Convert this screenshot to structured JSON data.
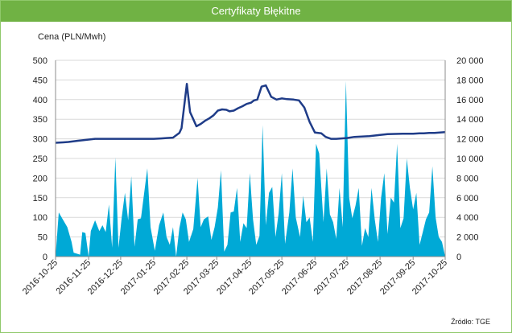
{
  "colors": {
    "header": "#70b244",
    "border": "#8fc96b",
    "price_line": "#1f3c88",
    "volume_area": "#00a9d6",
    "grid": "#d9d9d9",
    "text": "#222222"
  },
  "header": {
    "title": "Certyfikaty Błękitne"
  },
  "source_label": "Źródło: TGE",
  "chart_data": {
    "type": "line",
    "title": "Certyfikaty Błękitne",
    "ylabel": "Cena (PLN/Mwh)",
    "xlabel": "",
    "ylim": [
      0,
      500
    ],
    "y2lim": [
      0,
      20000
    ],
    "y_ticks": [
      "0",
      "50",
      "100",
      "150",
      "200",
      "250",
      "300",
      "350",
      "400",
      "450",
      "500"
    ],
    "y2_ticks": [
      "0",
      "2 000",
      "4 000",
      "6 000",
      "8 000",
      "10 000",
      "12 000",
      "14 000",
      "16 000",
      "18 000",
      "20 000"
    ],
    "x_ticks": [
      "2016-10-25",
      "2016-11-25",
      "2016-12-25",
      "2017-01-25",
      "2017-02-25",
      "2017-03-25",
      "2017-04-25",
      "2017-05-25",
      "2017-06-25",
      "2017-07-25",
      "2017-08-25",
      "2017-09-25",
      "2017-10-25"
    ],
    "x_range": [
      "2016-10-25",
      "2017-10-25"
    ],
    "grid": true,
    "legend": "none",
    "series": [
      {
        "type": "line",
        "axis": "left",
        "x": [
          "2016-10-25",
          "2016-11-01",
          "2016-11-06",
          "2016-11-15",
          "2016-12-01",
          "2016-12-20",
          "2017-01-05",
          "2017-01-10",
          "2017-01-15",
          "2017-01-25",
          "2017-02-01",
          "2017-02-06",
          "2017-02-12",
          "2017-02-18",
          "2017-02-20",
          "2017-02-25",
          "2017-02-28",
          "2017-03-03",
          "2017-03-06",
          "2017-03-10",
          "2017-03-14",
          "2017-03-18",
          "2017-03-22",
          "2017-03-26",
          "2017-03-30",
          "2017-04-03",
          "2017-04-06",
          "2017-04-10",
          "2017-04-14",
          "2017-04-18",
          "2017-04-22",
          "2017-04-26",
          "2017-04-29",
          "2017-05-02",
          "2017-05-06",
          "2017-05-10",
          "2017-05-15",
          "2017-05-20",
          "2017-05-25",
          "2017-05-30",
          "2017-06-05",
          "2017-06-10",
          "2017-06-15",
          "2017-06-20",
          "2017-06-25",
          "2017-07-01",
          "2017-07-05",
          "2017-07-10",
          "2017-07-15",
          "2017-07-25",
          "2017-08-01",
          "2017-08-15",
          "2017-08-25",
          "2017-09-01",
          "2017-09-15",
          "2017-09-25",
          "2017-10-01",
          "2017-10-05",
          "2017-10-10",
          "2017-10-15",
          "2017-10-25"
        ],
        "values": [
          290,
          291,
          292,
          295,
          300,
          300,
          300,
          300,
          300,
          300,
          301,
          302,
          303,
          315,
          327,
          440,
          368,
          350,
          332,
          338,
          346,
          352,
          360,
          372,
          375,
          374,
          370,
          372,
          378,
          383,
          389,
          392,
          398,
          400,
          433,
          436,
          407,
          400,
          403,
          401,
          400,
          398,
          380,
          343,
          316,
          314,
          305,
          300,
          300,
          302,
          305,
          307,
          310,
          312,
          313,
          313,
          314,
          314,
          315,
          315,
          317
        ]
      },
      {
        "type": "area",
        "axis": "right",
        "x": [
          "2016-10-25",
          "2016-10-28",
          "2016-11-05",
          "2016-11-09",
          "2016-11-11",
          "2016-11-17",
          "2016-11-19",
          "2016-11-22",
          "2016-11-25",
          "2016-11-27",
          "2016-12-01",
          "2016-12-05",
          "2016-12-08",
          "2016-12-11",
          "2016-12-14",
          "2016-12-17",
          "2016-12-20",
          "2016-12-23",
          "2016-12-26",
          "2016-12-29",
          "2017-01-01",
          "2017-01-04",
          "2017-01-07",
          "2017-01-10",
          "2017-01-13",
          "2017-01-16",
          "2017-01-19",
          "2017-01-22",
          "2017-01-26",
          "2017-01-30",
          "2017-02-03",
          "2017-02-06",
          "2017-02-09",
          "2017-02-12",
          "2017-02-15",
          "2017-02-18",
          "2017-02-21",
          "2017-02-24",
          "2017-02-27",
          "2017-03-03",
          "2017-03-07",
          "2017-03-10",
          "2017-03-13",
          "2017-03-17",
          "2017-03-20",
          "2017-03-23",
          "2017-03-26",
          "2017-03-29",
          "2017-04-01",
          "2017-04-04",
          "2017-04-07",
          "2017-04-10",
          "2017-04-13",
          "2017-04-16",
          "2017-04-19",
          "2017-04-22",
          "2017-04-25",
          "2017-04-28",
          "2017-05-01",
          "2017-05-04",
          "2017-05-07",
          "2017-05-10",
          "2017-05-13",
          "2017-05-16",
          "2017-05-19",
          "2017-05-22",
          "2017-05-25",
          "2017-05-28",
          "2017-06-01",
          "2017-06-04",
          "2017-06-07",
          "2017-06-11",
          "2017-06-14",
          "2017-06-17",
          "2017-06-20",
          "2017-06-23",
          "2017-06-26",
          "2017-06-29",
          "2017-07-03",
          "2017-07-06",
          "2017-07-09",
          "2017-07-12",
          "2017-07-15",
          "2017-07-18",
          "2017-07-21",
          "2017-07-24",
          "2017-07-27",
          "2017-07-30",
          "2017-08-02",
          "2017-08-05",
          "2017-08-08",
          "2017-08-11",
          "2017-08-14",
          "2017-08-17",
          "2017-08-20",
          "2017-08-23",
          "2017-08-26",
          "2017-08-29",
          "2017-09-01",
          "2017-09-04",
          "2017-09-07",
          "2017-09-10",
          "2017-09-13",
          "2017-09-16",
          "2017-09-19",
          "2017-09-22",
          "2017-09-25",
          "2017-09-28",
          "2017-10-01",
          "2017-10-04",
          "2017-10-07",
          "2017-10-10",
          "2017-10-13",
          "2017-10-16",
          "2017-10-19",
          "2017-10-22",
          "2017-10-25"
        ],
        "values": [
          0,
          4500,
          3000,
          1500,
          400,
          200,
          2500,
          2400,
          0,
          2600,
          3700,
          2600,
          3200,
          2500,
          5300,
          900,
          10100,
          900,
          4000,
          6500,
          3700,
          8200,
          1000,
          3800,
          3900,
          6500,
          9000,
          3000,
          600,
          3200,
          4500,
          2000,
          1200,
          3000,
          0,
          2900,
          4500,
          3800,
          1500,
          2800,
          8000,
          3000,
          3800,
          4100,
          1700,
          3000,
          5000,
          8800,
          500,
          1200,
          4500,
          4600,
          7000,
          1500,
          3400,
          2900,
          8500,
          3800,
          1200,
          2100,
          13400,
          3200,
          6500,
          7100,
          2000,
          4400,
          8500,
          1300,
          4500,
          9000,
          4000,
          2000,
          6200,
          3500,
          4000,
          1500,
          11500,
          10500,
          3500,
          9000,
          4300,
          3500,
          1800,
          7000,
          3000,
          17900,
          6000,
          3900,
          5200,
          7000,
          1100,
          2900,
          2000,
          7000,
          3800,
          1500,
          6000,
          8500,
          2300,
          6000,
          5500,
          11500,
          2900,
          3900,
          10000,
          7000,
          4800,
          6500,
          1200,
          2500,
          3800,
          4500,
          9200,
          4000,
          2000,
          1500,
          0
        ]
      }
    ]
  }
}
